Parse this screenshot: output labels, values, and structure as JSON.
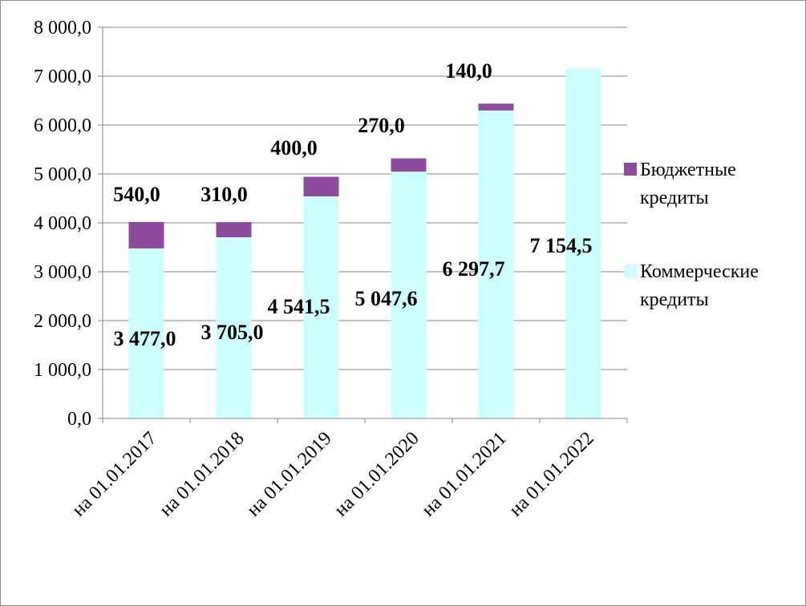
{
  "chart_data": {
    "type": "bar",
    "stacked": true,
    "categories": [
      "на 01.01.2017",
      "на 01.01.2018",
      "на 01.01.2019",
      "на 01.01.2020",
      "на 01.01.2021",
      "на 01.01.2022"
    ],
    "series": [
      {
        "name": "Коммерческие кредиты",
        "color": "#ccffff",
        "values": [
          3477.0,
          3705.0,
          4541.5,
          5047.6,
          6297.7,
          7154.5
        ],
        "labels": [
          "3 477,0",
          "3 705,0",
          "4 541,5",
          "5 047,6",
          "6 297,7",
          "7 154,5"
        ]
      },
      {
        "name": "Бюджетные кредиты",
        "color": "#8e4a9c",
        "values": [
          540.0,
          310.0,
          400.0,
          270.0,
          140.0,
          0
        ],
        "labels": [
          "540,0",
          "310,0",
          "400,0",
          "270,0",
          "140,0",
          ""
        ]
      }
    ],
    "ylim": [
      0,
      8000
    ],
    "yticks": [
      "0,0",
      "1 000,0",
      "2 000,0",
      "3 000,0",
      "4 000,0",
      "5 000,0",
      "6 000,0",
      "7 000,0",
      "8 000,0"
    ],
    "legend": {
      "entries": [
        {
          "lines": [
            "Бюджетные",
            "кредиты"
          ],
          "color": "#8e4a9c"
        },
        {
          "lines": [
            "Коммерческие",
            "кредиты"
          ],
          "color": "#ccffff"
        }
      ]
    },
    "grid": true,
    "title": "",
    "xlabel": "",
    "ylabel": ""
  }
}
